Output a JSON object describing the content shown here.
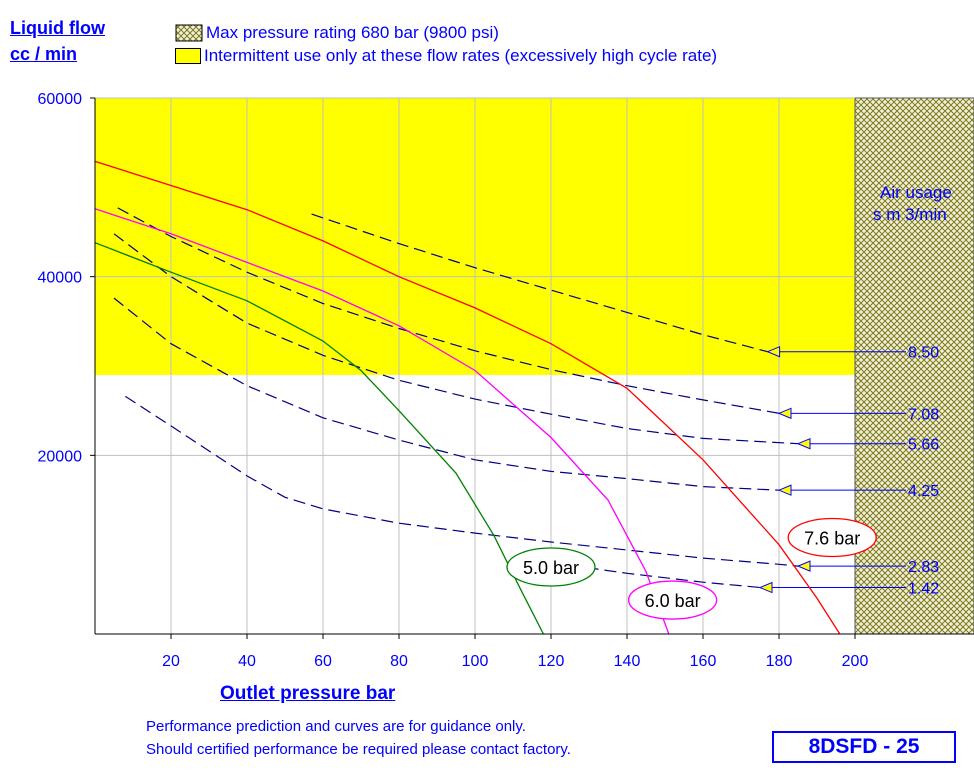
{
  "y_title_line1": "Liquid flow",
  "y_title_line2": "cc / min",
  "x_title": "Outlet pressure   bar",
  "legend": {
    "hatch_label": "Max pressure rating 680 bar (9800 psi)",
    "yellow_label": "Intermittent use only at these flow rates (excessively high cycle rate)"
  },
  "air_usage_title_line1": "Air usage",
  "air_usage_title_line2": "s m 3/min",
  "note_line1": "Performance prediction and curves are for guidance only.",
  "note_line2": "Should certified performance be required please contact factory.",
  "model": "8DSFD - 25",
  "colors": {
    "text": "#0000ff",
    "yellow_zone": "#ffff00",
    "hatch": "#7a7a20",
    "air_lines": "#000080",
    "curve_5": "#008000",
    "curve_6": "#ff00ff",
    "curve_76": "#ff0000"
  },
  "chart_data": {
    "type": "line",
    "xlim": [
      0,
      200
    ],
    "ylim": [
      0,
      60000
    ],
    "x_ticks": [
      20,
      40,
      60,
      80,
      100,
      120,
      140,
      160,
      180,
      200
    ],
    "y_ticks": [
      20000,
      40000,
      60000
    ],
    "grid": true,
    "yellow_zone_min_flow": 29000,
    "hatched_zone_min_pressure": 200,
    "drive_pressure_curves": [
      {
        "name": "5.0 bar",
        "color": "#008000",
        "points": [
          [
            0,
            43800
          ],
          [
            20,
            40500
          ],
          [
            40,
            37300
          ],
          [
            60,
            32800
          ],
          [
            70,
            29500
          ],
          [
            80,
            25000
          ],
          [
            95,
            18000
          ],
          [
            105,
            11000
          ],
          [
            112,
            5000
          ],
          [
            118,
            0
          ]
        ]
      },
      {
        "name": "6.0 bar",
        "color": "#ff00ff",
        "points": [
          [
            0,
            47600
          ],
          [
            20,
            44800
          ],
          [
            40,
            41600
          ],
          [
            60,
            38400
          ],
          [
            80,
            34500
          ],
          [
            100,
            29500
          ],
          [
            120,
            22000
          ],
          [
            135,
            15000
          ],
          [
            145,
            7000
          ],
          [
            151,
            0
          ]
        ]
      },
      {
        "name": "7.6 bar",
        "color": "#ff0000",
        "points": [
          [
            0,
            52900
          ],
          [
            20,
            50200
          ],
          [
            40,
            47500
          ],
          [
            60,
            44000
          ],
          [
            80,
            40000
          ],
          [
            100,
            36500
          ],
          [
            120,
            32500
          ],
          [
            140,
            27500
          ],
          [
            160,
            19500
          ],
          [
            180,
            10000
          ],
          [
            190,
            4000
          ],
          [
            196,
            0
          ]
        ]
      }
    ],
    "air_usage_lines": [
      {
        "name": "8.50",
        "points": [
          [
            57,
            47000
          ],
          [
            80,
            43700
          ],
          [
            100,
            41000
          ],
          [
            120,
            38500
          ],
          [
            140,
            36000
          ],
          [
            160,
            33500
          ],
          [
            177,
            31600
          ]
        ]
      },
      {
        "name": "7.08",
        "points": [
          [
            6,
            47700
          ],
          [
            20,
            44500
          ],
          [
            40,
            40500
          ],
          [
            60,
            37000
          ],
          [
            80,
            34200
          ],
          [
            100,
            31700
          ],
          [
            120,
            29600
          ],
          [
            140,
            27800
          ],
          [
            160,
            26200
          ],
          [
            180,
            24700
          ]
        ]
      },
      {
        "name": "5.66",
        "points": [
          [
            5,
            44800
          ],
          [
            20,
            40000
          ],
          [
            40,
            34800
          ],
          [
            60,
            31200
          ],
          [
            80,
            28400
          ],
          [
            100,
            26300
          ],
          [
            120,
            24600
          ],
          [
            140,
            23000
          ],
          [
            160,
            21900
          ],
          [
            185,
            21300
          ]
        ]
      },
      {
        "name": "4.25",
        "points": [
          [
            5,
            37600
          ],
          [
            20,
            32500
          ],
          [
            40,
            27800
          ],
          [
            60,
            24200
          ],
          [
            80,
            21700
          ],
          [
            100,
            19500
          ],
          [
            120,
            18200
          ],
          [
            140,
            17400
          ],
          [
            160,
            16500
          ],
          [
            180,
            16100
          ]
        ]
      },
      {
        "name": "2.83",
        "points": [
          [
            8,
            26600
          ],
          [
            20,
            23300
          ],
          [
            40,
            17700
          ],
          [
            50,
            15300
          ],
          [
            60,
            14000
          ],
          [
            80,
            12400
          ],
          [
            100,
            11300
          ],
          [
            120,
            10300
          ],
          [
            140,
            9400
          ],
          [
            160,
            8500
          ],
          [
            180,
            7800
          ],
          [
            185,
            7600
          ]
        ]
      },
      {
        "name": "1.42",
        "points": [
          [
            120,
            8000
          ],
          [
            140,
            6800
          ],
          [
            160,
            5800
          ],
          [
            175,
            5200
          ]
        ]
      }
    ]
  }
}
